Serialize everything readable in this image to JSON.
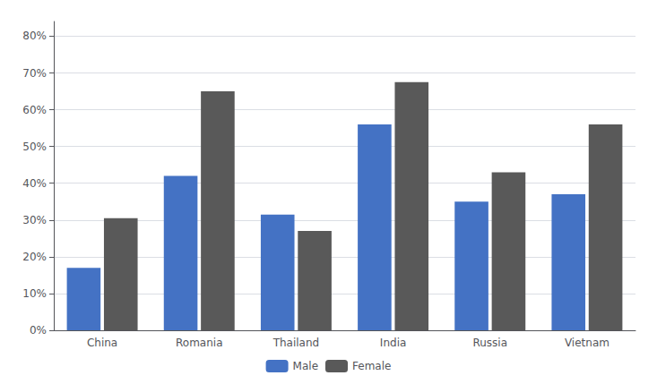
{
  "chart_data": {
    "type": "bar",
    "categories": [
      "China",
      "Romania",
      "Thailand",
      "India",
      "Russia",
      "Vietnam"
    ],
    "series": [
      {
        "name": "Male",
        "color": "#4472C4",
        "values": [
          0.17,
          0.42,
          0.315,
          0.56,
          0.35,
          0.37
        ]
      },
      {
        "name": "Female",
        "color": "#595959",
        "values": [
          0.305,
          0.65,
          0.27,
          0.675,
          0.43,
          0.56
        ]
      }
    ],
    "ylim": [
      0,
      0.84
    ],
    "yticks": [
      {
        "value": 0,
        "label": "0%"
      },
      {
        "value": 0.1,
        "label": "10%"
      },
      {
        "value": 0.2,
        "label": "20%"
      },
      {
        "value": 0.3,
        "label": "30%"
      },
      {
        "value": 0.4,
        "label": "40%"
      },
      {
        "value": 0.5,
        "label": "50%"
      },
      {
        "value": 0.6,
        "label": "60%"
      },
      {
        "value": 0.7,
        "label": "70%"
      },
      {
        "value": 0.8,
        "label": "80%"
      }
    ],
    "grid": true,
    "legend": "bottom"
  }
}
